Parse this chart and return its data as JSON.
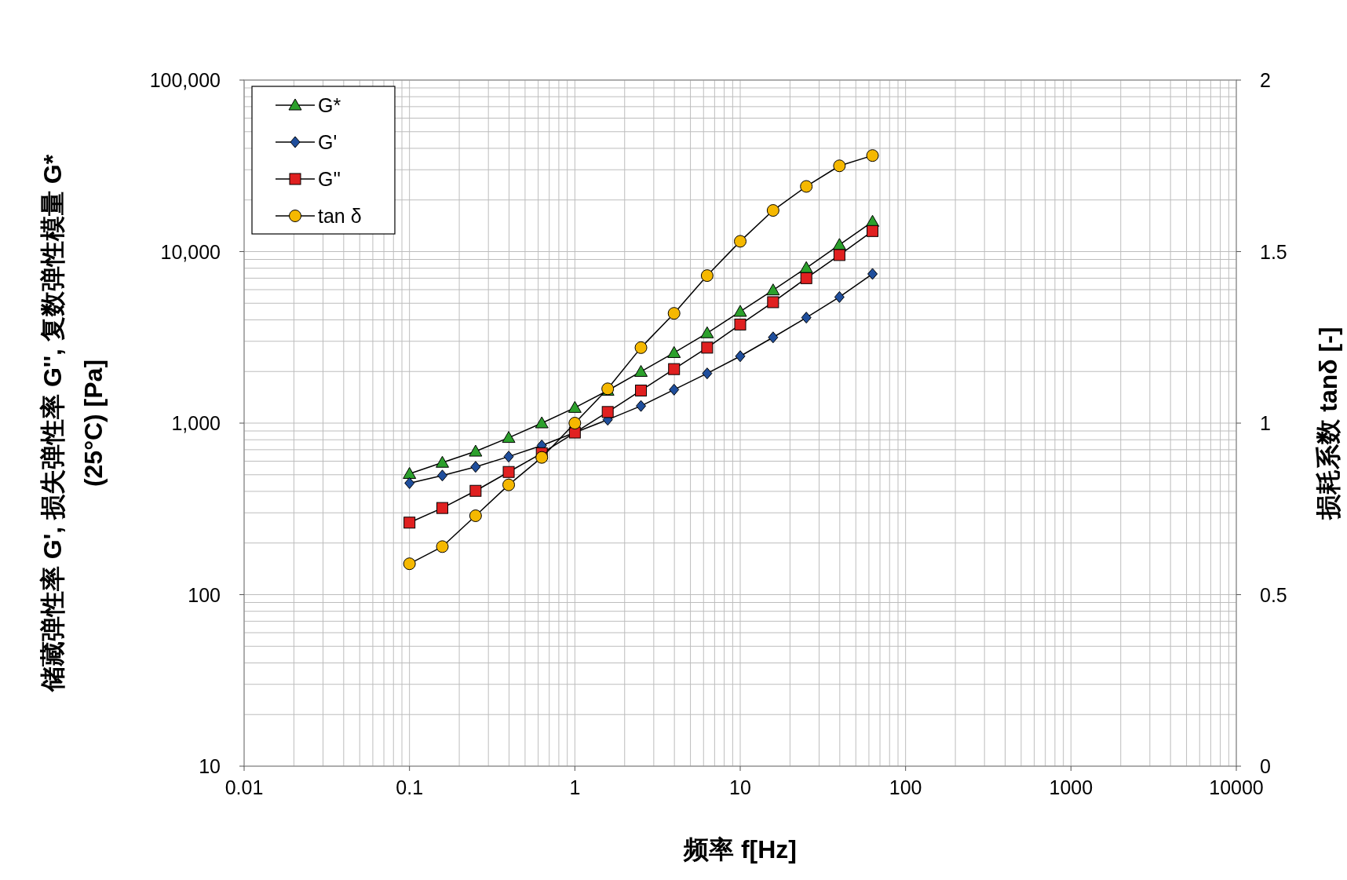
{
  "chart_data": {
    "type": "line",
    "xlabel": "频率 f[Hz]",
    "ylabel": "储藏弹性率 G', 损失弹性率 G'', 复数弹性模量 G*\n(25°C) [Pa]",
    "y2label": "损耗系数 tanδ [-]",
    "x": [
      0.1,
      0.158,
      0.251,
      0.398,
      0.631,
      1,
      1.58,
      2.51,
      3.98,
      6.31,
      10,
      15.8,
      25.1,
      39.8,
      63.1
    ],
    "log": "xy",
    "xlim": [
      0.01,
      10000
    ],
    "xticks": [
      0.01,
      0.1,
      1,
      10,
      100,
      1000,
      10000
    ],
    "ylim": [
      10,
      100000
    ],
    "yticks": [
      10,
      100,
      {
        "value": 1000,
        "label": "1,000"
      },
      {
        "value": 10000,
        "label": "10,000"
      },
      {
        "value": 100000,
        "label": "100,000"
      }
    ],
    "y2lim": [
      0,
      2
    ],
    "y2ticks": [
      0,
      0.5,
      1,
      1.5,
      2
    ],
    "grid": true,
    "legend": "top left",
    "line_style": "solid",
    "series": [
      {
        "name": "G*",
        "color": "#2ca02c",
        "marker": "triangle",
        "values": [
          507,
          589,
          684,
          822,
          1000,
          1230,
          1549,
          1995,
          2570,
          3350,
          4467,
          5957,
          8035,
          10960,
          14960
        ]
      },
      {
        "name": "G'",
        "color": "#1f4e9c",
        "marker": "diamond",
        "values": [
          447,
          495,
          556,
          638,
          741,
          881,
          1047,
          1259,
          1567,
          1950,
          2455,
          3162,
          4121,
          5433,
          7413
        ]
      },
      {
        "name": "G''",
        "color": "#e02020",
        "marker": "square",
        "values": [
          263,
          320,
          403,
          519,
          668,
          881,
          1161,
          1549,
          2065,
          2754,
          3758,
          5070,
          7000,
          9550,
          13180
        ]
      },
      {
        "name": "tan δ",
        "color": "#f5b800",
        "marker": "circle",
        "axis": "y2",
        "values": [
          0.59,
          0.64,
          0.73,
          0.82,
          0.9,
          1.0,
          1.1,
          1.22,
          1.32,
          1.43,
          1.53,
          1.62,
          1.69,
          1.75,
          1.78
        ]
      }
    ]
  }
}
